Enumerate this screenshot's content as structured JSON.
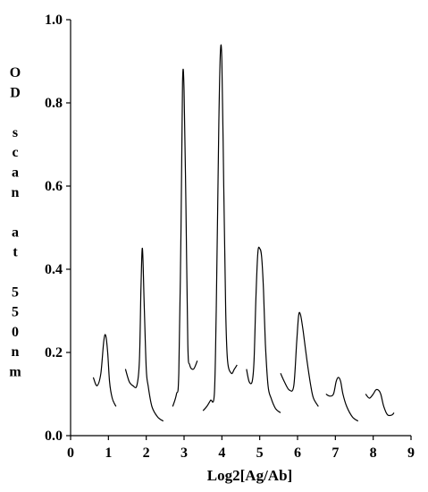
{
  "chart_data": {
    "type": "line",
    "title": "",
    "xlabel": "Log2[Ag/Ab]",
    "ylabel": "OD scan at 550nm",
    "ylabel_lines": [
      "O",
      "D",
      "",
      "s",
      "c",
      "a",
      "n",
      "",
      "a",
      "t",
      "",
      "5",
      "5",
      "0",
      "n",
      "m"
    ],
    "xlim": [
      0,
      9
    ],
    "ylim": [
      0,
      1.0
    ],
    "x_ticks": [
      0,
      1,
      2,
      3,
      4,
      5,
      6,
      7,
      8,
      9
    ],
    "x_tick_labels": [
      "0",
      "1",
      "2",
      "3",
      "4",
      "5",
      "6",
      "7",
      "8",
      "9"
    ],
    "y_ticks": [
      0,
      0.2,
      0.4,
      0.6,
      0.8,
      1.0
    ],
    "y_tick_labels": [
      "0.0",
      "0.2",
      "0.4",
      "0.6",
      "0.8",
      "1.0"
    ],
    "grid": false,
    "legend": "none",
    "series": [
      {
        "points": [
          [
            0.6,
            0.14
          ],
          [
            0.7,
            0.12
          ],
          [
            0.8,
            0.15
          ],
          [
            0.88,
            0.23
          ],
          [
            0.93,
            0.24
          ],
          [
            0.98,
            0.2
          ],
          [
            1.03,
            0.13
          ],
          [
            1.1,
            0.09
          ],
          [
            1.2,
            0.07
          ]
        ]
      },
      {
        "points": [
          [
            1.45,
            0.16
          ],
          [
            1.55,
            0.13
          ],
          [
            1.65,
            0.12
          ],
          [
            1.75,
            0.12
          ],
          [
            1.82,
            0.18
          ],
          [
            1.86,
            0.35
          ],
          [
            1.9,
            0.45
          ],
          [
            1.95,
            0.3
          ],
          [
            2.0,
            0.16
          ],
          [
            2.05,
            0.12
          ],
          [
            2.15,
            0.07
          ],
          [
            2.3,
            0.045
          ],
          [
            2.45,
            0.035
          ]
        ]
      },
      {
        "points": [
          [
            2.7,
            0.07
          ],
          [
            2.8,
            0.1
          ],
          [
            2.86,
            0.15
          ],
          [
            2.92,
            0.5
          ],
          [
            2.96,
            0.85
          ],
          [
            3.0,
            0.83
          ],
          [
            3.05,
            0.55
          ],
          [
            3.1,
            0.22
          ],
          [
            3.15,
            0.17
          ],
          [
            3.25,
            0.16
          ],
          [
            3.35,
            0.18
          ]
        ]
      },
      {
        "points": [
          [
            3.5,
            0.06
          ],
          [
            3.6,
            0.07
          ],
          [
            3.7,
            0.085
          ],
          [
            3.8,
            0.1
          ],
          [
            3.85,
            0.3
          ],
          [
            3.92,
            0.75
          ],
          [
            3.96,
            0.92
          ],
          [
            4.0,
            0.9
          ],
          [
            4.05,
            0.6
          ],
          [
            4.1,
            0.3
          ],
          [
            4.15,
            0.18
          ],
          [
            4.25,
            0.15
          ],
          [
            4.33,
            0.16
          ],
          [
            4.4,
            0.17
          ]
        ]
      },
      {
        "points": [
          [
            4.65,
            0.16
          ],
          [
            4.72,
            0.13
          ],
          [
            4.8,
            0.13
          ],
          [
            4.85,
            0.18
          ],
          [
            4.9,
            0.33
          ],
          [
            4.95,
            0.44
          ],
          [
            5.0,
            0.45
          ],
          [
            5.05,
            0.43
          ],
          [
            5.1,
            0.35
          ],
          [
            5.15,
            0.22
          ],
          [
            5.22,
            0.12
          ],
          [
            5.3,
            0.09
          ],
          [
            5.42,
            0.065
          ],
          [
            5.55,
            0.055
          ]
        ]
      },
      {
        "points": [
          [
            5.55,
            0.15
          ],
          [
            5.65,
            0.13
          ],
          [
            5.78,
            0.11
          ],
          [
            5.9,
            0.12
          ],
          [
            5.98,
            0.23
          ],
          [
            6.03,
            0.29
          ],
          [
            6.08,
            0.29
          ],
          [
            6.15,
            0.25
          ],
          [
            6.25,
            0.18
          ],
          [
            6.35,
            0.12
          ],
          [
            6.42,
            0.09
          ],
          [
            6.55,
            0.07
          ]
        ]
      },
      {
        "points": [
          [
            6.75,
            0.1
          ],
          [
            6.85,
            0.095
          ],
          [
            6.95,
            0.1
          ],
          [
            7.02,
            0.13
          ],
          [
            7.08,
            0.14
          ],
          [
            7.14,
            0.13
          ],
          [
            7.2,
            0.1
          ],
          [
            7.3,
            0.07
          ],
          [
            7.45,
            0.045
          ],
          [
            7.6,
            0.035
          ]
        ]
      },
      {
        "points": [
          [
            7.8,
            0.1
          ],
          [
            7.9,
            0.09
          ],
          [
            8.0,
            0.1
          ],
          [
            8.07,
            0.11
          ],
          [
            8.13,
            0.11
          ],
          [
            8.2,
            0.1
          ],
          [
            8.28,
            0.07
          ],
          [
            8.38,
            0.05
          ],
          [
            8.5,
            0.05
          ],
          [
            8.55,
            0.055
          ]
        ]
      }
    ]
  }
}
